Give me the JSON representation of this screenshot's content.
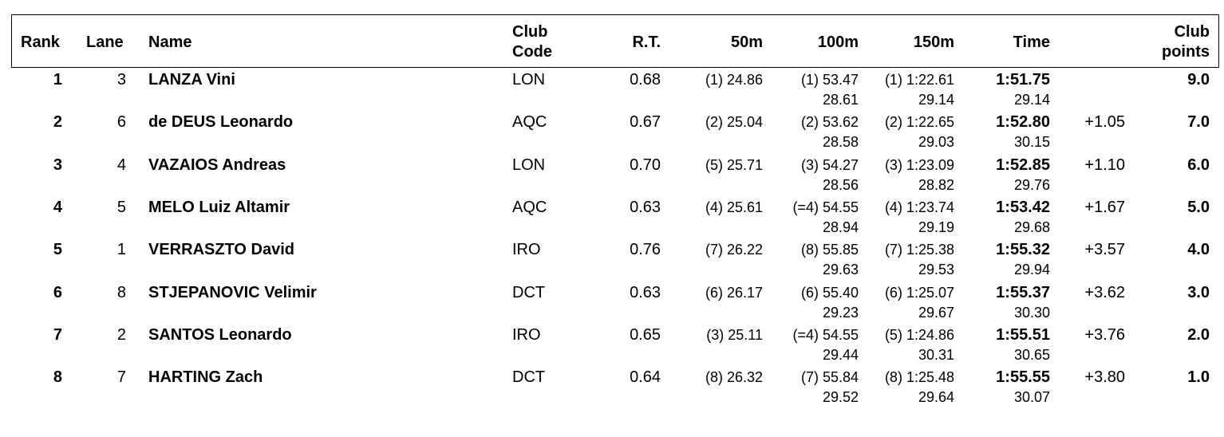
{
  "headers": {
    "rank": "Rank",
    "lane": "Lane",
    "name": "Name",
    "club_code_1": "Club",
    "club_code_2": "Code",
    "rt": "R.T.",
    "m50": "50m",
    "m100": "100m",
    "m150": "150m",
    "time": "Time",
    "club_points_1": "Club",
    "club_points_2": "points"
  },
  "rows": [
    {
      "rank": "1",
      "lane": "3",
      "name": "LANZA Vini",
      "club": "LON",
      "rt": "0.68",
      "s50": "(1) 24.86",
      "s100": "(1) 53.47",
      "s100b": "28.61",
      "s150": "(1) 1:22.61",
      "s150b": "29.14",
      "time": "1:51.75",
      "timeb": "29.14",
      "behind": "",
      "points": "9.0"
    },
    {
      "rank": "2",
      "lane": "6",
      "name": "de DEUS Leonardo",
      "club": "AQC",
      "rt": "0.67",
      "s50": "(2) 25.04",
      "s100": "(2) 53.62",
      "s100b": "28.58",
      "s150": "(2) 1:22.65",
      "s150b": "29.03",
      "time": "1:52.80",
      "timeb": "30.15",
      "behind": "+1.05",
      "points": "7.0"
    },
    {
      "rank": "3",
      "lane": "4",
      "name": "VAZAIOS Andreas",
      "club": "LON",
      "rt": "0.70",
      "s50": "(5) 25.71",
      "s100": "(3) 54.27",
      "s100b": "28.56",
      "s150": "(3) 1:23.09",
      "s150b": "28.82",
      "time": "1:52.85",
      "timeb": "29.76",
      "behind": "+1.10",
      "points": "6.0"
    },
    {
      "rank": "4",
      "lane": "5",
      "name": "MELO Luiz Altamir",
      "club": "AQC",
      "rt": "0.63",
      "s50": "(4) 25.61",
      "s100": "(=4) 54.55",
      "s100b": "28.94",
      "s150": "(4) 1:23.74",
      "s150b": "29.19",
      "time": "1:53.42",
      "timeb": "29.68",
      "behind": "+1.67",
      "points": "5.0"
    },
    {
      "rank": "5",
      "lane": "1",
      "name": "VERRASZTO David",
      "club": "IRO",
      "rt": "0.76",
      "s50": "(7) 26.22",
      "s100": "(8) 55.85",
      "s100b": "29.63",
      "s150": "(7) 1:25.38",
      "s150b": "29.53",
      "time": "1:55.32",
      "timeb": "29.94",
      "behind": "+3.57",
      "points": "4.0"
    },
    {
      "rank": "6",
      "lane": "8",
      "name": "STJEPANOVIC Velimir",
      "club": "DCT",
      "rt": "0.63",
      "s50": "(6) 26.17",
      "s100": "(6) 55.40",
      "s100b": "29.23",
      "s150": "(6) 1:25.07",
      "s150b": "29.67",
      "time": "1:55.37",
      "timeb": "30.30",
      "behind": "+3.62",
      "points": "3.0"
    },
    {
      "rank": "7",
      "lane": "2",
      "name": "SANTOS Leonardo",
      "club": "IRO",
      "rt": "0.65",
      "s50": "(3) 25.11",
      "s100": "(=4) 54.55",
      "s100b": "29.44",
      "s150": "(5) 1:24.86",
      "s150b": "30.31",
      "time": "1:55.51",
      "timeb": "30.65",
      "behind": "+3.76",
      "points": "2.0"
    },
    {
      "rank": "8",
      "lane": "7",
      "name": "HARTING Zach",
      "club": "DCT",
      "rt": "0.64",
      "s50": "(8) 26.32",
      "s100": "(7) 55.84",
      "s100b": "29.52",
      "s150": "(8) 1:25.48",
      "s150b": "29.64",
      "time": "1:55.55",
      "timeb": "30.07",
      "behind": "+3.80",
      "points": "1.0"
    }
  ]
}
